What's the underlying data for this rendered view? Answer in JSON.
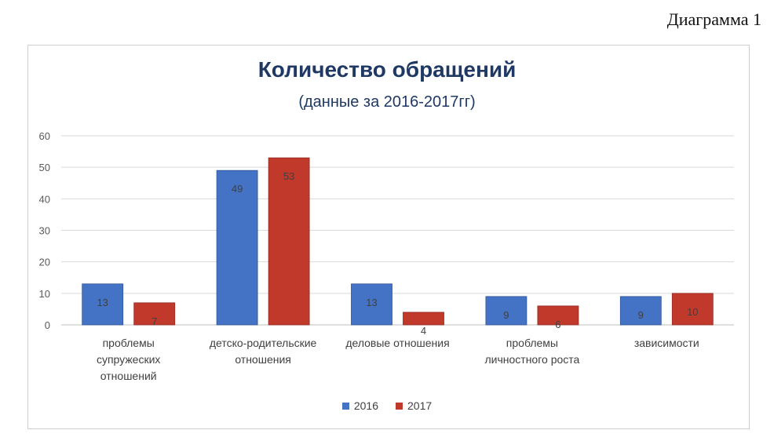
{
  "caption": "Диаграмма 1",
  "chart_data": {
    "type": "bar",
    "title": "Количество обращений",
    "subtitle": "(данные за 2016-2017гг)",
    "categories": [
      "проблемы супружеских отношений",
      "детско-родительские отношения",
      "деловые отношения",
      "проблемы личностного роста",
      "зависимости"
    ],
    "category_lines": [
      [
        "проблемы",
        "супружеских",
        "отношений"
      ],
      [
        "детско-родительские",
        "отношения"
      ],
      [
        "деловые отношения"
      ],
      [
        "проблемы",
        "личностного роста"
      ],
      [
        "зависимости"
      ]
    ],
    "series": [
      {
        "name": "2016",
        "values": [
          13,
          49,
          13,
          9,
          9
        ],
        "color": "#4472c4"
      },
      {
        "name": "2017",
        "values": [
          7,
          53,
          4,
          6,
          10
        ],
        "color": "#c0392b"
      }
    ],
    "ylim": [
      0,
      60
    ],
    "yticks": [
      0,
      10,
      20,
      30,
      40,
      50,
      60
    ],
    "grid": true,
    "legend": "bottom"
  }
}
